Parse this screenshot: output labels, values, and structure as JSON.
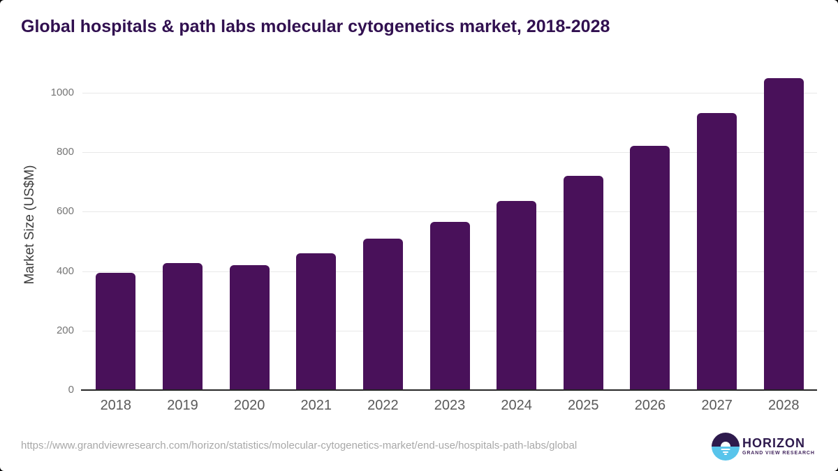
{
  "page": {
    "title": "Global hospitals & path labs molecular cytogenetics market, 2018-2028",
    "source_url": "https://www.grandviewresearch.com/horizon/statistics/molecular-cytogenetics-market/end-use/hospitals-path-labs/global"
  },
  "logo": {
    "brand": "HORIZON",
    "tagline": "GRAND VIEW RESEARCH"
  },
  "chart_data": {
    "type": "bar",
    "title": "Global hospitals & path labs molecular cytogenetics market, 2018-2028",
    "categories": [
      "2018",
      "2019",
      "2020",
      "2021",
      "2022",
      "2023",
      "2024",
      "2025",
      "2026",
      "2027",
      "2028"
    ],
    "values": [
      395,
      428,
      420,
      460,
      509,
      566,
      637,
      720,
      822,
      931,
      1050
    ],
    "xlabel": "",
    "ylabel": "Market Size (US$M)",
    "ylim": [
      0,
      1100
    ],
    "yticks": [
      0,
      200,
      400,
      600,
      800,
      1000
    ],
    "grid": true,
    "legend": false,
    "bar_color": "#49115a"
  },
  "colors": {
    "title": "#311050",
    "bar": "#49115a",
    "axis_line": "#262626",
    "gridline": "#e8e8e8",
    "y_tick_label": "#757575",
    "x_tick_label": "#595959",
    "axis_title": "#3d3d3d",
    "url_text": "#a8a8a8",
    "logo_purple": "#2e1a4d",
    "logo_blue": "#58c4eb"
  }
}
